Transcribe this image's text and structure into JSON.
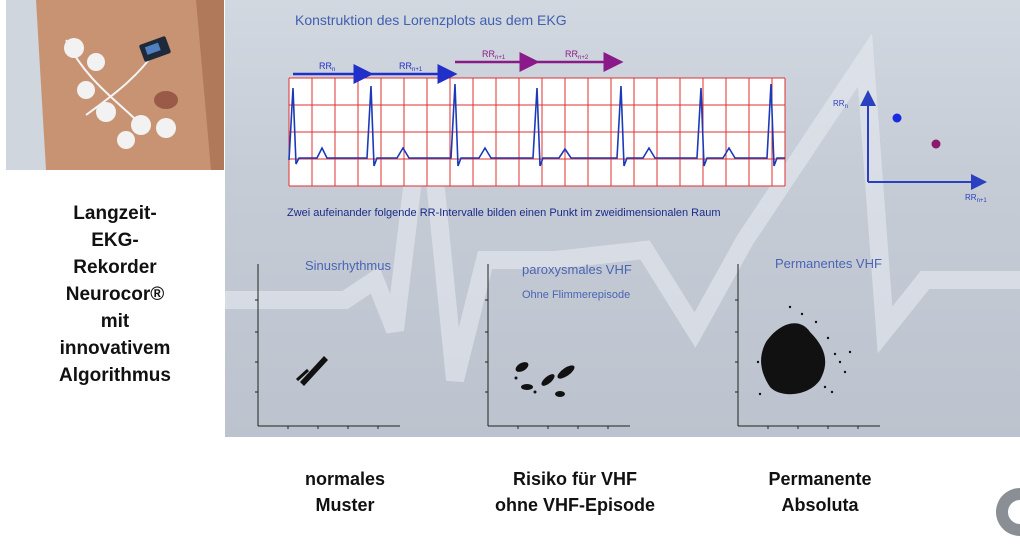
{
  "photo": {
    "alt": "Patient mit EKG-Elektroden"
  },
  "left_caption": [
    "Langzeit-",
    "EKG-",
    "Rekorder",
    "Neurocor®",
    "mit",
    "innovativem",
    "Algorithmus"
  ],
  "panel": {
    "title": "Konstruktion des Lorenzplots aus dem EKG",
    "subtitle": "Zwei aufeinander folgende RR-Intervalle bilden einen Punkt im zweidimensionalen Raum",
    "rr_labels": [
      "RR",
      "RR",
      "RR",
      "RR"
    ],
    "rr_subs": [
      "n",
      "n+1",
      "n+1",
      "n+2"
    ],
    "axis_y": "RR",
    "axis_y_sub": "n",
    "axis_x": "RR",
    "axis_x_sub": "n+1",
    "plots": [
      {
        "label": "Sinusrhythmus",
        "sub": ""
      },
      {
        "label": "paroxysmales VHF",
        "sub": "Ohne Flimmerepisode"
      },
      {
        "label": "Permanentes VHF",
        "sub": ""
      }
    ]
  },
  "bottom_captions": [
    [
      "normales",
      "Muster"
    ],
    [
      "Risiko für VHF",
      "ohne VHF-Episode"
    ],
    [
      "Permanente",
      "Absoluta"
    ]
  ],
  "colors": {
    "ecg_grid": "#e03030",
    "ecg_trace": "#1a3ab8",
    "arrow_blue": "#2030c8",
    "arrow_purple": "#8a1a8a",
    "point_blue": "#1a2ae0",
    "point_purple": "#8a1a6a"
  }
}
